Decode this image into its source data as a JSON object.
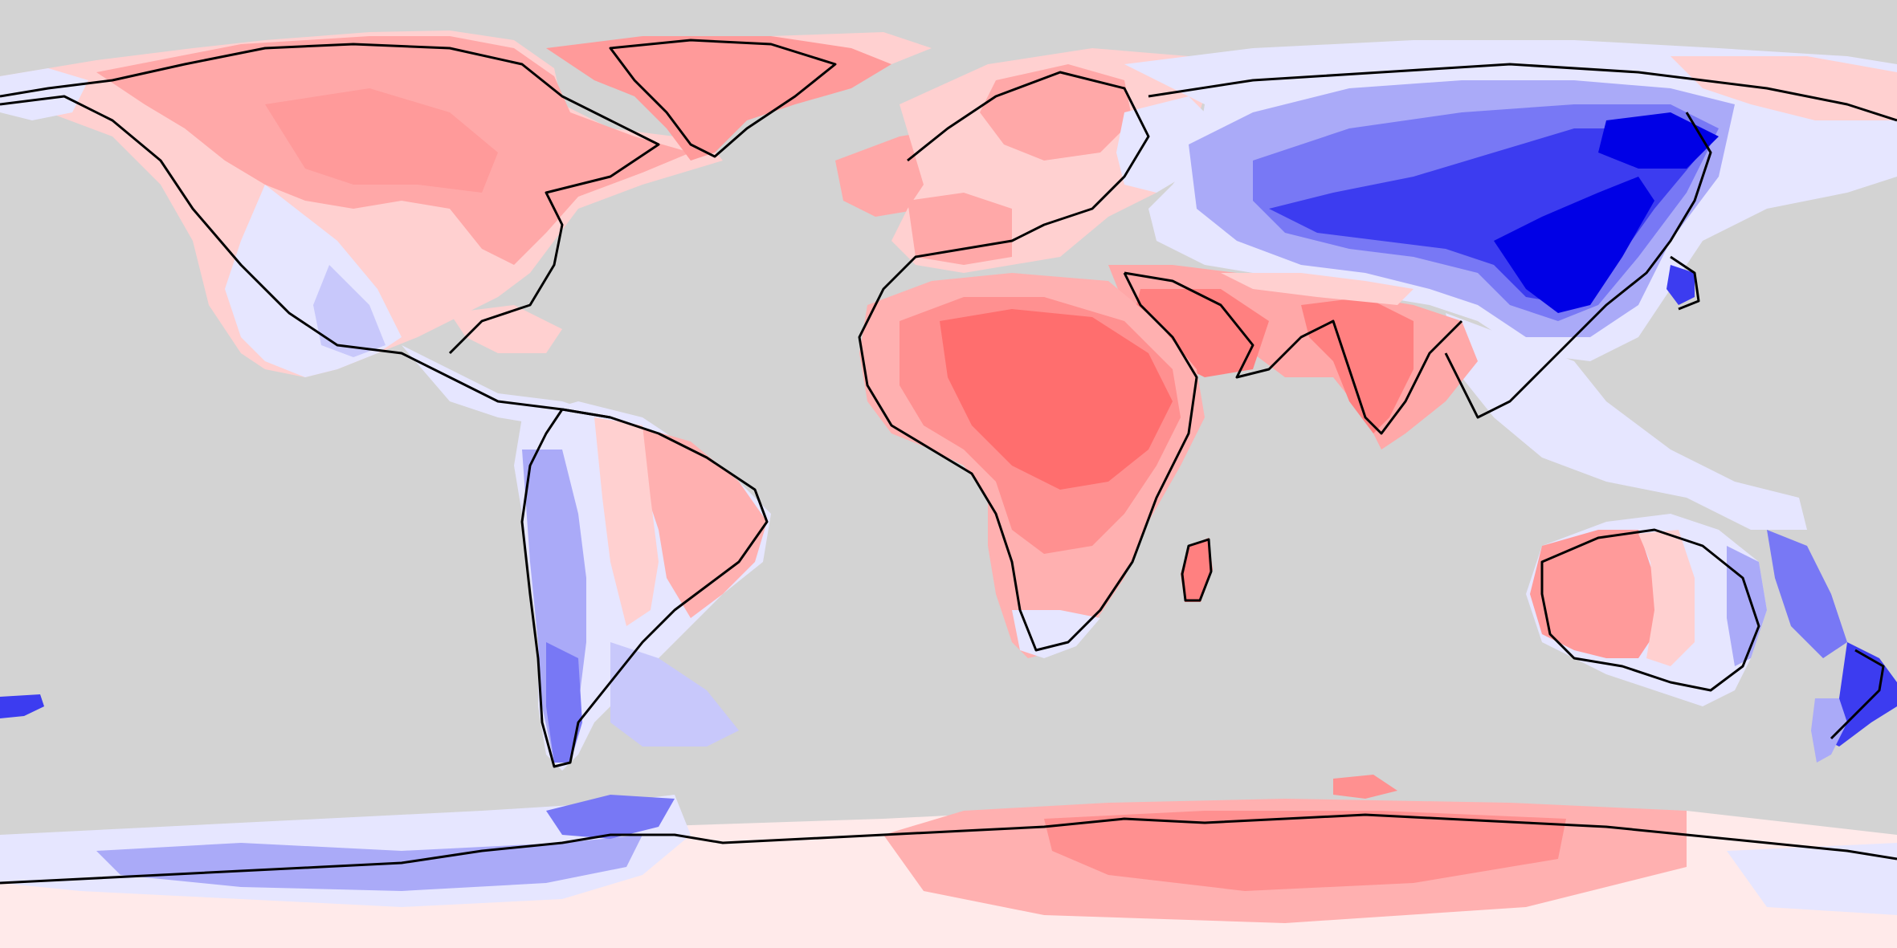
{
  "map": {
    "projection": "equirectangular",
    "lon_range": [
      -180,
      180
    ],
    "lat_range": [
      -90,
      90
    ],
    "ocean_color": "#d3d3d3",
    "coastline_color": "#000000",
    "scale_colors": {
      "strong_negative": "#0000e6",
      "negative_3": "#3c3cf0",
      "negative_2": "#7878f5",
      "negative_1": "#aaaaf8",
      "near_negative": "#e6e6ff",
      "neutral": "#ffeaea",
      "near_positive": "#ffd0d0",
      "positive_1": "#ffb0b0",
      "positive_2": "#ff9090",
      "positive_3": "#ff6e6e"
    }
  }
}
